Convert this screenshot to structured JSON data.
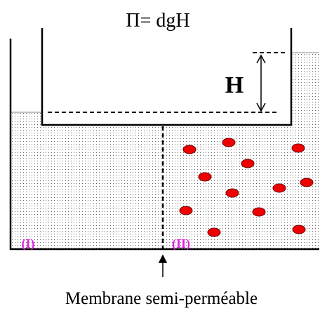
{
  "title": "Π= dgH",
  "height_label": "H",
  "compartments": [
    "(I)",
    "(II)"
  ],
  "membrane_label": "Membrane semi-perméable"
}
